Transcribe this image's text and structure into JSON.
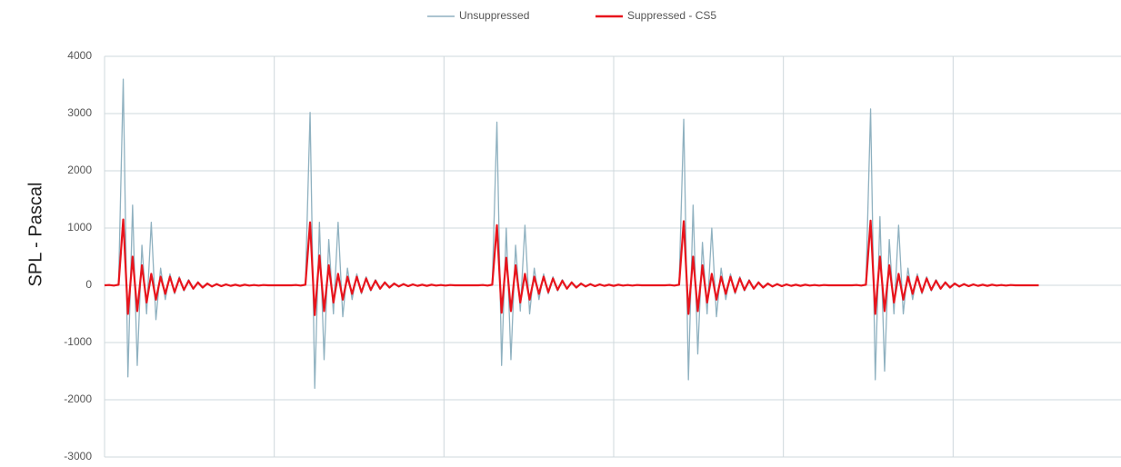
{
  "chart_data": {
    "type": "line",
    "y_label": "SPL - Pascal",
    "ylim": [
      -3000,
      4000
    ],
    "yticks": [
      -3000,
      -2000,
      -1000,
      0,
      1000,
      2000,
      3000,
      4000
    ],
    "xlim": [
      0,
      218
    ],
    "grid": true,
    "legend": "top",
    "series": [
      {
        "name": "Unsuppressed",
        "color": "#8fb1c0",
        "values": [
          0,
          10,
          -10,
          20,
          3600,
          -1600,
          1400,
          -1400,
          700,
          -500,
          1100,
          -600,
          300,
          -250,
          200,
          -150,
          150,
          -100,
          100,
          -60,
          60,
          -40,
          40,
          -30,
          30,
          -20,
          20,
          -15,
          15,
          -10,
          10,
          -10,
          10,
          -5,
          5,
          -5,
          5,
          0,
          0,
          0,
          0,
          10,
          -10,
          20,
          3020,
          -1800,
          1100,
          -1300,
          800,
          -500,
          1100,
          -550,
          300,
          -250,
          200,
          -150,
          150,
          -100,
          100,
          -60,
          60,
          -40,
          40,
          -30,
          30,
          -20,
          20,
          -15,
          15,
          -10,
          10,
          -10,
          10,
          -5,
          5,
          -5,
          5,
          0,
          0,
          0,
          0,
          10,
          -10,
          20,
          2850,
          -1400,
          1000,
          -1300,
          700,
          -450,
          1050,
          -500,
          300,
          -250,
          200,
          -150,
          150,
          -100,
          100,
          -60,
          60,
          -40,
          40,
          -30,
          30,
          -20,
          20,
          -15,
          15,
          -10,
          10,
          -10,
          10,
          -5,
          5,
          -5,
          5,
          0,
          0,
          0,
          0,
          10,
          -10,
          20,
          2900,
          -1650,
          1400,
          -1200,
          750,
          -500,
          1000,
          -550,
          300,
          -250,
          200,
          -150,
          150,
          -100,
          100,
          -60,
          60,
          -40,
          40,
          -30,
          30,
          -20,
          20,
          -15,
          15,
          -10,
          10,
          -10,
          10,
          -5,
          5,
          -5,
          5,
          0,
          0,
          0,
          0,
          10,
          -10,
          20,
          3080,
          -1650,
          1200,
          -1500,
          800,
          -500,
          1050,
          -500,
          300,
          -250,
          200,
          -150,
          150,
          -100,
          100,
          -60,
          60,
          -40,
          40,
          -30,
          30,
          -20,
          20,
          -15,
          15,
          -10,
          10,
          -10,
          10,
          -5,
          5,
          -5,
          5,
          0,
          0,
          0,
          0
        ]
      },
      {
        "name": "Suppressed - CS5",
        "color": "#e8141c",
        "values": [
          0,
          5,
          -5,
          10,
          1150,
          -500,
          500,
          -450,
          350,
          -300,
          200,
          -250,
          150,
          -150,
          150,
          -120,
          120,
          -80,
          80,
          -60,
          50,
          -40,
          30,
          -20,
          20,
          -15,
          15,
          -10,
          10,
          -10,
          10,
          -5,
          5,
          -5,
          5,
          0,
          0,
          0,
          0,
          0,
          0,
          5,
          -5,
          10,
          1100,
          -520,
          520,
          -450,
          350,
          -300,
          200,
          -250,
          150,
          -150,
          150,
          -120,
          120,
          -80,
          80,
          -60,
          50,
          -40,
          30,
          -20,
          20,
          -15,
          15,
          -10,
          10,
          -10,
          10,
          -5,
          5,
          -5,
          5,
          0,
          0,
          0,
          0,
          0,
          0,
          5,
          -5,
          10,
          1050,
          -480,
          480,
          -450,
          350,
          -300,
          200,
          -250,
          150,
          -150,
          150,
          -120,
          120,
          -80,
          80,
          -60,
          50,
          -40,
          30,
          -20,
          20,
          -15,
          15,
          -10,
          10,
          -10,
          10,
          -5,
          5,
          -5,
          5,
          0,
          0,
          0,
          0,
          0,
          0,
          5,
          -5,
          10,
          1120,
          -500,
          500,
          -450,
          350,
          -300,
          200,
          -250,
          150,
          -150,
          150,
          -120,
          120,
          -80,
          80,
          -60,
          50,
          -40,
          30,
          -20,
          20,
          -15,
          15,
          -10,
          10,
          -10,
          10,
          -5,
          5,
          -5,
          5,
          0,
          0,
          0,
          0,
          0,
          0,
          5,
          -5,
          10,
          1130,
          -500,
          500,
          -450,
          350,
          -300,
          200,
          -250,
          150,
          -150,
          150,
          -120,
          120,
          -80,
          80,
          -60,
          50,
          -40,
          30,
          -20,
          20,
          -15,
          15,
          -10,
          10,
          -10,
          10,
          -5,
          5,
          -5,
          5,
          0,
          0,
          0,
          0,
          0,
          0
        ]
      }
    ]
  }
}
